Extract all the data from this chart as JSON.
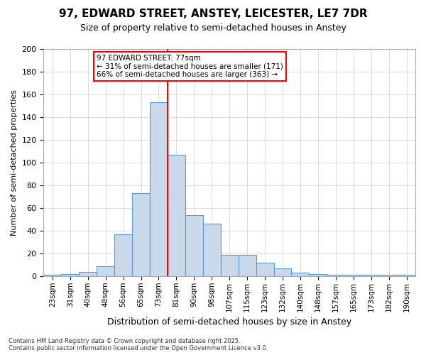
{
  "title1": "97, EDWARD STREET, ANSTEY, LEICESTER, LE7 7DR",
  "title2": "Size of property relative to semi-detached houses in Anstey",
  "xlabel": "Distribution of semi-detached houses by size in Anstey",
  "ylabel": "Number of semi-detached properties",
  "categories": [
    "23sqm",
    "31sqm",
    "40sqm",
    "48sqm",
    "56sqm",
    "65sqm",
    "73sqm",
    "81sqm",
    "90sqm",
    "98sqm",
    "107sqm",
    "115sqm",
    "123sqm",
    "132sqm",
    "140sqm",
    "148sqm",
    "157sqm",
    "165sqm",
    "173sqm",
    "182sqm",
    "190sqm"
  ],
  "bar_values": [
    1,
    2,
    4,
    9,
    37,
    73,
    153,
    107,
    54,
    46,
    19,
    19,
    12,
    7,
    3,
    2,
    1,
    1,
    1,
    1,
    1
  ],
  "bar_color": "#c9d9ea",
  "bar_edge_color": "#5b9bd5",
  "vline_color": "red",
  "vline_category": "81sqm",
  "annotation_text": "97 EDWARD STREET: 77sqm\n← 31% of semi-detached houses are smaller (171)\n66% of semi-detached houses are larger (363) →",
  "annotation_box_color": "white",
  "annotation_box_edge_color": "red",
  "grid_color": "#cccccc",
  "background_color": "white",
  "footer1": "Contains HM Land Registry data © Crown copyright and database right 2025.",
  "footer2": "Contains public sector information licensed under the Open Government Licence v3.0.",
  "ylim": [
    0,
    200
  ],
  "yticks": [
    0,
    20,
    40,
    60,
    80,
    100,
    120,
    140,
    160,
    180,
    200
  ]
}
